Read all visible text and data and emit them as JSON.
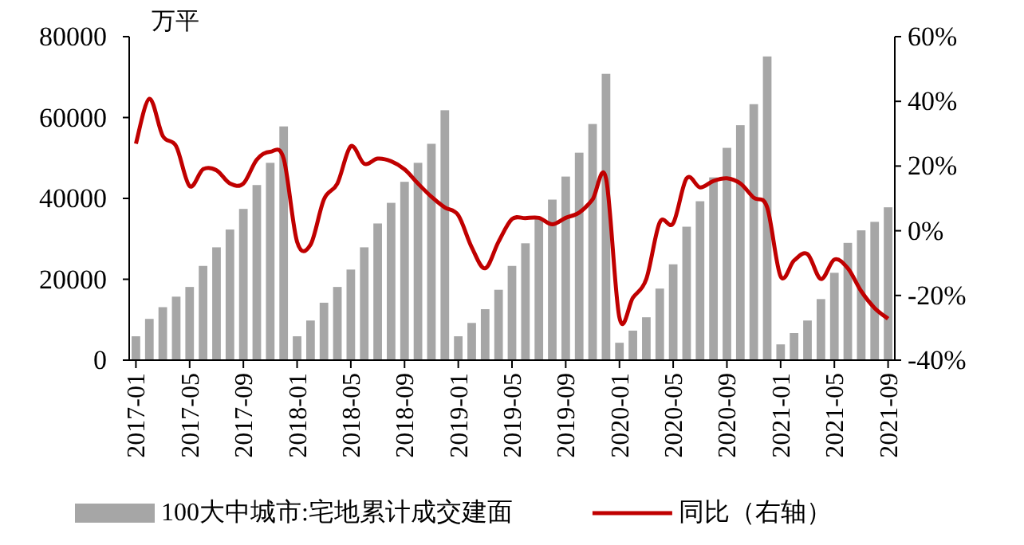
{
  "chart_data": {
    "type": "bar",
    "ylabel": "万平",
    "categories": [
      "2017-01",
      null,
      null,
      null,
      "2017-05",
      null,
      null,
      null,
      "2017-09",
      null,
      null,
      null,
      "2018-01",
      null,
      null,
      null,
      "2018-05",
      null,
      null,
      null,
      "2018-09",
      null,
      null,
      null,
      "2019-01",
      null,
      null,
      null,
      "2019-05",
      null,
      null,
      null,
      "2019-09",
      null,
      null,
      null,
      "2020-01",
      null,
      null,
      null,
      "2020-05",
      null,
      null,
      null,
      "2020-09",
      null,
      null,
      null,
      "2021-01",
      null,
      null,
      null,
      "2021-05",
      null,
      null,
      null,
      "2021-09"
    ],
    "series": [
      {
        "name": "100大中城市:宅地累计成交建面",
        "color": "#a6a6a6",
        "values": [
          5900,
          10200,
          13100,
          15700,
          18100,
          23300,
          27900,
          32300,
          37400,
          43300,
          48800,
          57800,
          5900,
          9800,
          14200,
          18100,
          22400,
          27900,
          33800,
          38900,
          44100,
          48800,
          53500,
          61800,
          5900,
          9200,
          12600,
          17400,
          23300,
          28900,
          35100,
          39700,
          45400,
          51300,
          58400,
          70800,
          4300,
          7300,
          10600,
          17700,
          23700,
          33000,
          39300,
          45200,
          52500,
          58100,
          63300,
          75100,
          3900,
          6700,
          9800,
          15100,
          21600,
          29000,
          32100,
          34200,
          37800
        ]
      },
      {
        "name": "同比（右轴）",
        "type": "line",
        "axis": "y2",
        "color": "#c00000",
        "values": [
          26.9,
          40.8,
          29.3,
          26.1,
          13.8,
          19.0,
          18.7,
          14.6,
          14.6,
          22.0,
          24.4,
          22.3,
          -3.4,
          -4.3,
          9.7,
          14.6,
          26.1,
          20.7,
          22.3,
          21.5,
          19.0,
          14.6,
          10.5,
          7.2,
          4.8,
          -5.1,
          -11.6,
          -3.4,
          3.6,
          3.9,
          4.0,
          2.0,
          4.0,
          5.6,
          9.7,
          16.2,
          -26.9,
          -20.7,
          -14.9,
          2.6,
          2.3,
          16.2,
          13.4,
          15.4,
          16.2,
          14.6,
          10.2,
          7.2,
          -14.1,
          -9.2,
          -7.2,
          -14.9,
          -8.9,
          -11.6,
          -18.7,
          -23.9,
          -27.2
        ]
      }
    ],
    "ylim": [
      0,
      80000
    ],
    "yticks": [
      0,
      20000,
      40000,
      60000,
      80000
    ],
    "y2lim": [
      -40,
      60
    ],
    "y2ticks": [
      {
        "value": -40,
        "label": "-40%"
      },
      {
        "value": -20,
        "label": "-20%"
      },
      {
        "value": 0,
        "label": "0%"
      },
      {
        "value": 20,
        "label": "20%"
      },
      {
        "value": 40,
        "label": "40%"
      },
      {
        "value": 60,
        "label": "60%"
      }
    ],
    "legend": "bottom",
    "grid": false
  }
}
